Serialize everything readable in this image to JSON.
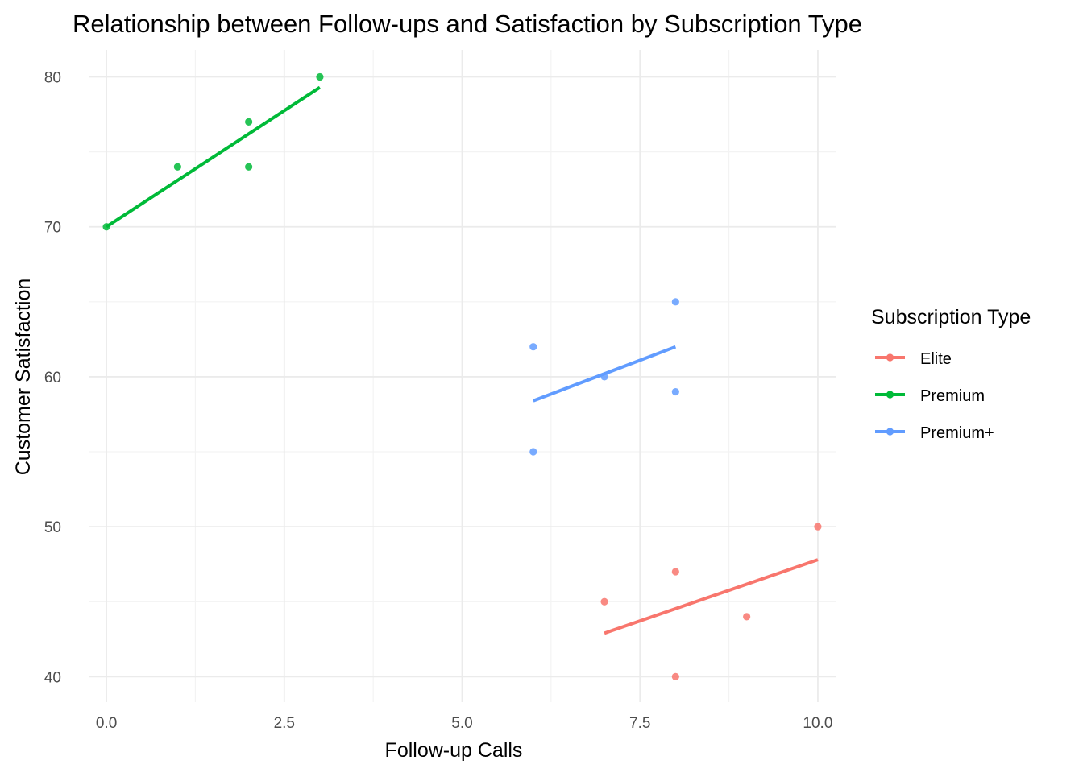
{
  "chart_data": {
    "type": "scatter",
    "title": "Relationship between Follow-ups and Satisfaction by Subscription Type",
    "xlabel": "Follow-up Calls",
    "ylabel": "Customer Satisfaction",
    "xlim": [
      -0.25,
      10.25
    ],
    "ylim": [
      38.3,
      81.8
    ],
    "x_ticks": [
      "0.0",
      "2.5",
      "5.0",
      "7.5",
      "10.0"
    ],
    "x_tick_values": [
      0,
      2.5,
      5,
      7.5,
      10
    ],
    "x_minor": [
      1.25,
      3.75,
      6.25,
      8.75
    ],
    "y_ticks": [
      "40",
      "50",
      "60",
      "70",
      "80"
    ],
    "y_tick_values": [
      40,
      50,
      60,
      70,
      80
    ],
    "y_minor": [
      45,
      55,
      65,
      75
    ],
    "grid": true,
    "legend": {
      "title": "Subscription Type",
      "position": "right"
    },
    "series": [
      {
        "name": "Elite",
        "color": "#F8766D",
        "points": [
          [
            7,
            45
          ],
          [
            8,
            47
          ],
          [
            8,
            40
          ],
          [
            9,
            44
          ],
          [
            10,
            50
          ]
        ],
        "fit": [
          [
            7,
            42.9
          ],
          [
            10,
            47.8
          ]
        ]
      },
      {
        "name": "Premium",
        "color": "#00BA38",
        "points": [
          [
            0,
            70
          ],
          [
            1,
            74
          ],
          [
            2,
            77
          ],
          [
            2,
            74
          ],
          [
            3,
            80
          ]
        ],
        "fit": [
          [
            0,
            70.0
          ],
          [
            3,
            79.3
          ]
        ]
      },
      {
        "name": "Premium+",
        "color": "#619CFF",
        "points": [
          [
            6,
            62
          ],
          [
            6,
            55
          ],
          [
            7,
            60
          ],
          [
            8,
            65
          ],
          [
            8,
            59
          ]
        ],
        "fit": [
          [
            6,
            58.4
          ],
          [
            8,
            62.0
          ]
        ]
      }
    ]
  }
}
